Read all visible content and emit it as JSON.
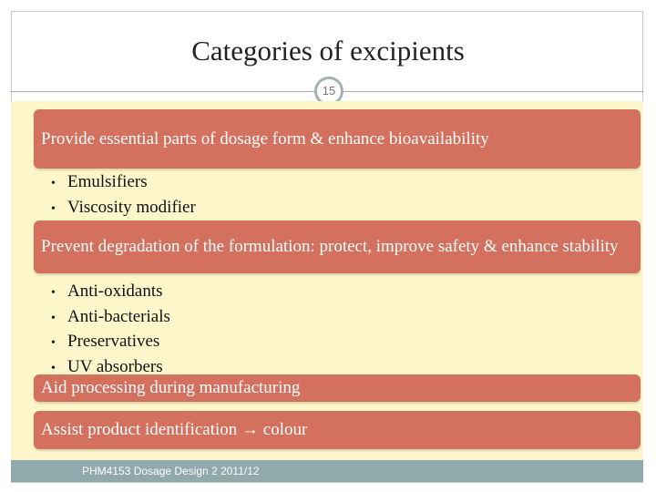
{
  "header": {
    "title": "Categories of excipients",
    "page_number": "15"
  },
  "sections": [
    {
      "heading": "Provide essential parts of dosage form & enhance bioavailability",
      "bullets": [
        "Emulsifiers",
        "Viscosity modifier"
      ]
    },
    {
      "heading": "Prevent degradation of the formulation: protect, improve safety & enhance stability",
      "bullets": [
        "Anti-oxidants",
        "Anti-bacterials",
        "Preservatives",
        "UV absorbers"
      ]
    },
    {
      "heading": "Aid processing during manufacturing",
      "bullets": []
    },
    {
      "heading": "Assist product identification → colour",
      "bullets": []
    }
  ],
  "footer": {
    "text": "PHM4153 Dosage Design 2 2011/12"
  }
}
